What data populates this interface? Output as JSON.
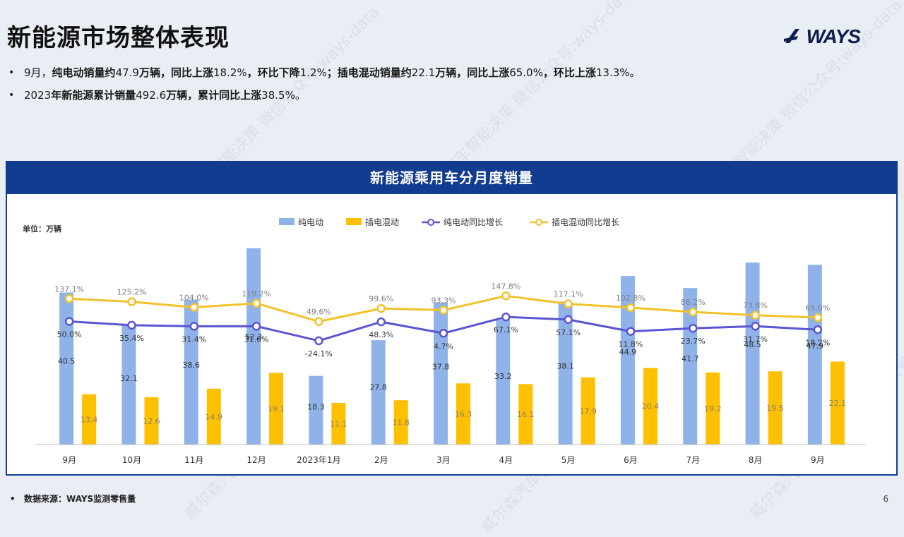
{
  "page": {
    "title": "新能源市场整体表现",
    "logo_text": "WAYS",
    "page_number": "6",
    "watermark": "威尔森汽车智能决策 微信公众号:ways-data"
  },
  "bullets": [
    {
      "segments": [
        {
          "text": "9月，",
          "bold": false
        },
        {
          "text": "纯电动销量约",
          "bold": true
        },
        {
          "text": "47.9",
          "bold": false
        },
        {
          "text": "万辆，同比上涨",
          "bold": true
        },
        {
          "text": "18.2%",
          "bold": false
        },
        {
          "text": "，环比下降",
          "bold": true
        },
        {
          "text": "1.2%",
          "bold": false
        },
        {
          "text": "；插电混动销量约",
          "bold": true
        },
        {
          "text": "22.1",
          "bold": false
        },
        {
          "text": "万辆，同比上涨",
          "bold": true
        },
        {
          "text": "65.0%",
          "bold": false
        },
        {
          "text": "，环比上涨",
          "bold": true
        },
        {
          "text": "13.3%。",
          "bold": false
        }
      ]
    },
    {
      "segments": [
        {
          "text": "2023",
          "bold": false
        },
        {
          "text": "年新能源累计销量",
          "bold": true
        },
        {
          "text": "492.6",
          "bold": false
        },
        {
          "text": "万辆，累计同比上涨",
          "bold": true
        },
        {
          "text": "38.5%。",
          "bold": false
        }
      ]
    }
  ],
  "footer": {
    "source": "数据来源：WAYS监测零售量"
  },
  "chart_data": {
    "type": "bar",
    "title": "新能源乘用车分月度销量",
    "unit_label": "单位：万辆",
    "categories": [
      "9月",
      "10月",
      "11月",
      "12月",
      "2023年1月",
      "2月",
      "3月",
      "4月",
      "5月",
      "6月",
      "7月",
      "8月",
      "9月"
    ],
    "series": [
      {
        "name": "纯电动",
        "type": "bar",
        "color": "#8fb3e9",
        "values": [
          40.5,
          32.1,
          38.6,
          52.3,
          18.3,
          27.8,
          37.8,
          33.2,
          38.1,
          44.9,
          41.7,
          48.5,
          47.9
        ],
        "labels": [
          "40.5",
          "32.1",
          "38.6",
          "52.3",
          "18.3",
          "27.8",
          "37.8",
          "33.2",
          "38.1",
          "44.9",
          "41.7",
          "48.5",
          "47.9"
        ]
      },
      {
        "name": "插电混动",
        "type": "bar",
        "color": "#ffc000",
        "values": [
          13.4,
          12.6,
          14.9,
          19.1,
          11.1,
          11.8,
          16.3,
          16.1,
          17.9,
          20.4,
          19.2,
          19.5,
          22.1
        ],
        "labels": [
          "13.4",
          "12.6",
          "14.9",
          "19.1",
          "11.1",
          "11.8",
          "16.3",
          "16.1",
          "17.9",
          "20.4",
          "19.2",
          "19.5",
          "22.1"
        ]
      },
      {
        "name": "纯电动同比增长",
        "type": "line",
        "color": "#5a55d2",
        "values": [
          50.0,
          35.4,
          31.4,
          31.6,
          -24.1,
          48.3,
          4.7,
          67.1,
          57.1,
          11.8,
          23.7,
          31.7,
          18.2
        ],
        "labels": [
          "50.0%",
          "35.4%",
          "31.4%",
          "31.6%",
          "-24.1%",
          "48.3%",
          "4.7%",
          "67.1%",
          "57.1%",
          "11.8%",
          "23.7%",
          "31.7%",
          "18.2%"
        ]
      },
      {
        "name": "插电混动同比增长",
        "type": "line",
        "color": "#f2c22a",
        "values": [
          137.1,
          125.2,
          104.0,
          119.2,
          49.6,
          99.6,
          93.3,
          147.8,
          117.1,
          102.8,
          86.2,
          73.8,
          65.0
        ],
        "labels": [
          "137.1%",
          "125.2%",
          "104.0%",
          "119.2%",
          "49.6%",
          "99.6%",
          "93.3%",
          "147.8%",
          "117.1%",
          "102.8%",
          "86.2%",
          "73.8%",
          "65.0%"
        ]
      }
    ],
    "legend_position": "top-center",
    "grid": false
  }
}
